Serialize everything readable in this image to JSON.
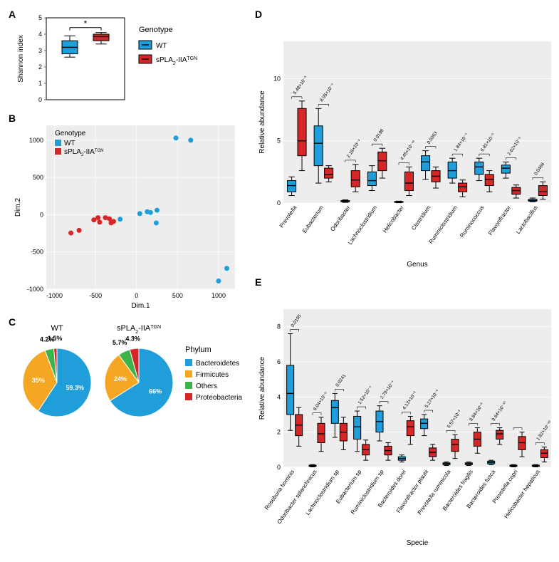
{
  "colors": {
    "wt": "#1f9ed9",
    "tg": "#d62728",
    "bacteroidetes": "#1f9ed9",
    "firmicutes": "#f5a623",
    "others": "#3cb44b",
    "proteobacteria": "#d62728",
    "bg": "#ffffff",
    "grid": "#d0d0d0",
    "axis": "#000000",
    "panel": "#ededed"
  },
  "genotype_legend": {
    "title": "Genotype",
    "wt": "WT",
    "tg_prefix": "sPLA",
    "tg_sub": "2",
    "tg_mid": "-IIA",
    "tg_super": "TGN"
  },
  "phylum_legend": {
    "title": "Phylum",
    "items": [
      "Bacteroidetes",
      "Firmicutes",
      "Others",
      "Proteobacteria"
    ]
  },
  "panelA": {
    "label": "A",
    "ylabel": "Shannon index",
    "ylim": [
      0,
      5
    ],
    "yticks": [
      0,
      1,
      2,
      3,
      4,
      5
    ],
    "sig": "*",
    "boxes": {
      "wt": {
        "min": 2.6,
        "q1": 2.8,
        "med": 3.2,
        "q3": 3.6,
        "max": 3.9
      },
      "tg": {
        "min": 3.4,
        "q1": 3.6,
        "med": 3.85,
        "q3": 4.0,
        "max": 4.1
      }
    }
  },
  "panelB": {
    "label": "B",
    "xlabel": "Dim.1",
    "ylabel": "Dim.2",
    "xlim": [
      -1100,
      1200
    ],
    "xticks": [
      -1000,
      -500,
      0,
      500,
      1000
    ],
    "ylim": [
      -1000,
      1200
    ],
    "yticks": [
      -1000,
      -500,
      0,
      500,
      1000
    ],
    "wt_points": [
      [
        -200,
        -60
      ],
      [
        40,
        15
      ],
      [
        130,
        40
      ],
      [
        170,
        30
      ],
      [
        250,
        60
      ],
      [
        240,
        -110
      ],
      [
        480,
        1030
      ],
      [
        660,
        1000
      ],
      [
        1100,
        -720
      ],
      [
        1000,
        -890
      ]
    ],
    "tg_points": [
      [
        -800,
        -245
      ],
      [
        -700,
        -210
      ],
      [
        -520,
        -70
      ],
      [
        -470,
        -40
      ],
      [
        -450,
        -100
      ],
      [
        -380,
        -40
      ],
      [
        -330,
        -55
      ],
      [
        -310,
        -110
      ],
      [
        -280,
        -90
      ]
    ]
  },
  "panelC": {
    "label": "C",
    "wt_title": "WT",
    "tg_title_prefix": "sPLA",
    "tg_title_sub": "2",
    "tg_title_mid": "-IIA",
    "tg_title_sup": "TGN",
    "wt": {
      "Bacteroidetes": 59.3,
      "Firmicutes": 35,
      "Others": 4.2,
      "Proteobacteria": 1.5
    },
    "tg": {
      "Bacteroidetes": 66,
      "Firmicutes": 24,
      "Others": 5.7,
      "Proteobacteria": 4.3
    },
    "wt_labels": [
      "59.3%",
      "35%",
      "4.2%",
      "1.5%"
    ],
    "tg_labels": [
      "66%",
      "24%",
      "5.7%",
      "4.3%"
    ]
  },
  "panelD": {
    "label": "D",
    "xlabel": "Genus",
    "ylabel": "Relative abundance",
    "ylim": [
      0,
      13
    ],
    "yticks": [
      0,
      5,
      10
    ],
    "categories": [
      "Prevotella",
      "Eubacterium",
      "Odoribacter",
      "Lachnoclostridium",
      "Helicobacter",
      "Clostridium",
      "Ruminiclostridium",
      "Ruminococcus",
      "Flavonifractor",
      "Lactobacillus"
    ],
    "pvals": [
      "5.48×10⁻³",
      "8.05×10⁻⁴",
      "2.18×10⁻⁹",
      "0.0198",
      "4.45×10⁻⁴³",
      "0.0363",
      "1.84×10⁻⁴",
      "6.81×10⁻³",
      "2.62×10⁻⁶",
      "0.0466"
    ],
    "wt": [
      {
        "min": 0.6,
        "q1": 0.9,
        "med": 1.4,
        "q3": 1.8,
        "max": 2.1
      },
      {
        "min": 1.6,
        "q1": 3.0,
        "med": 4.8,
        "q3": 6.2,
        "max": 7.6
      },
      {
        "min": 0.05,
        "q1": 0.1,
        "med": 0.15,
        "q3": 0.2,
        "max": 0.25
      },
      {
        "min": 1.0,
        "q1": 1.4,
        "med": 1.8,
        "q3": 2.5,
        "max": 3.0
      },
      {
        "min": 0.02,
        "q1": 0.05,
        "med": 0.08,
        "q3": 0.12,
        "max": 0.15
      },
      {
        "min": 1.9,
        "q1": 2.6,
        "med": 3.3,
        "q3": 3.8,
        "max": 4.2
      },
      {
        "min": 1.6,
        "q1": 2.0,
        "med": 2.6,
        "q3": 3.3,
        "max": 3.6
      },
      {
        "min": 1.8,
        "q1": 2.3,
        "med": 2.9,
        "q3": 3.3,
        "max": 3.6
      },
      {
        "min": 2.0,
        "q1": 2.4,
        "med": 2.8,
        "q3": 3.05,
        "max": 3.3
      },
      {
        "min": 0.1,
        "q1": 0.15,
        "med": 0.2,
        "q3": 0.3,
        "max": 0.4
      }
    ],
    "tg": [
      {
        "min": 2.6,
        "q1": 3.8,
        "med": 5.0,
        "q3": 7.6,
        "max": 8.2
      },
      {
        "min": 1.7,
        "q1": 2.0,
        "med": 2.3,
        "q3": 2.8,
        "max": 3.0
      },
      {
        "min": 0.9,
        "q1": 1.3,
        "med": 1.85,
        "q3": 2.6,
        "max": 3.1
      },
      {
        "min": 2.0,
        "q1": 2.6,
        "med": 3.4,
        "q3": 4.1,
        "max": 4.4
      },
      {
        "min": 0.6,
        "q1": 1.0,
        "med": 1.6,
        "q3": 2.5,
        "max": 2.9
      },
      {
        "min": 1.2,
        "q1": 1.7,
        "med": 2.15,
        "q3": 2.6,
        "max": 2.9
      },
      {
        "min": 0.5,
        "q1": 0.9,
        "med": 1.3,
        "q3": 1.6,
        "max": 1.85
      },
      {
        "min": 0.9,
        "q1": 1.4,
        "med": 1.9,
        "q3": 2.3,
        "max": 2.6
      },
      {
        "min": 0.4,
        "q1": 0.7,
        "med": 1.0,
        "q3": 1.25,
        "max": 1.45
      },
      {
        "min": 0.3,
        "q1": 0.6,
        "med": 0.9,
        "q3": 1.4,
        "max": 1.7
      }
    ]
  },
  "panelE": {
    "label": "E",
    "xlabel": "Specie",
    "ylabel": "Relative abundance",
    "ylim": [
      0,
      9
    ],
    "yticks": [
      0,
      2,
      4,
      6,
      8
    ],
    "categories": [
      "Roseburia hominis",
      "Odoribacter splanchnicus",
      "Lachnoclostridium sp",
      "Eubacterium sp",
      "Ruminiclostridium sp",
      "Bacteroides dorei",
      "Flavonifractor plautii",
      "Prevotella ruminicola",
      "Bacteroides fragilis",
      "Bacteroides fusca",
      "Prevotella copri",
      "Helicobacter hepaticus"
    ],
    "pvals": [
      "0.0195",
      "8.04×10⁻⁹",
      "0.0241",
      "1.52×10⁻⁴",
      "2.79×10⁻⁴",
      "4.13×10⁻³",
      "5.27×10⁻⁶",
      "5.57×10⁻³",
      "8.84×10⁻³",
      "9.64×10⁻¹⁰",
      "",
      "1.82×10⁻⁹²"
    ],
    "wt": [
      {
        "min": 2.1,
        "q1": 3.0,
        "med": 4.2,
        "q3": 5.8,
        "max": 7.6
      },
      {
        "min": 0.02,
        "q1": 0.05,
        "med": 0.08,
        "q3": 0.12,
        "max": 0.15
      },
      {
        "min": 1.7,
        "q1": 2.5,
        "med": 3.4,
        "q3": 3.8,
        "max": 4.2
      },
      {
        "min": 0.9,
        "q1": 1.6,
        "med": 2.3,
        "q3": 2.9,
        "max": 3.2
      },
      {
        "min": 1.5,
        "q1": 2.0,
        "med": 2.6,
        "q3": 3.2,
        "max": 3.5
      },
      {
        "min": 0.3,
        "q1": 0.4,
        "med": 0.5,
        "q3": 0.6,
        "max": 0.7
      },
      {
        "min": 1.8,
        "q1": 2.2,
        "med": 2.5,
        "q3": 2.75,
        "max": 3.0
      },
      {
        "min": 0.1,
        "q1": 0.15,
        "med": 0.2,
        "q3": 0.25,
        "max": 0.3
      },
      {
        "min": 0.1,
        "q1": 0.15,
        "med": 0.2,
        "q3": 0.25,
        "max": 0.3
      },
      {
        "min": 0.15,
        "q1": 0.2,
        "med": 0.28,
        "q3": 0.35,
        "max": 0.4
      },
      {
        "min": 0.02,
        "q1": 0.05,
        "med": 0.08,
        "q3": 0.12,
        "max": 0.15
      },
      {
        "min": 0.02,
        "q1": 0.05,
        "med": 0.08,
        "q3": 0.12,
        "max": 0.15
      }
    ],
    "tg": [
      {
        "min": 1.2,
        "q1": 1.8,
        "med": 2.4,
        "q3": 3.0,
        "max": 3.4
      },
      {
        "min": 0.9,
        "q1": 1.4,
        "med": 1.9,
        "q3": 2.5,
        "max": 2.85
      },
      {
        "min": 1.0,
        "q1": 1.5,
        "med": 2.0,
        "q3": 2.5,
        "max": 2.85
      },
      {
        "min": 0.4,
        "q1": 0.7,
        "med": 1.0,
        "q3": 1.3,
        "max": 1.55
      },
      {
        "min": 0.4,
        "q1": 0.7,
        "med": 0.95,
        "q3": 1.2,
        "max": 1.4
      },
      {
        "min": 1.3,
        "q1": 1.8,
        "med": 2.3,
        "q3": 2.65,
        "max": 2.9
      },
      {
        "min": 0.4,
        "q1": 0.6,
        "med": 0.85,
        "q3": 1.1,
        "max": 1.3
      },
      {
        "min": 0.5,
        "q1": 0.9,
        "med": 1.3,
        "q3": 1.6,
        "max": 1.85
      },
      {
        "min": 0.8,
        "q1": 1.2,
        "med": 1.6,
        "q3": 2.0,
        "max": 2.25
      },
      {
        "min": 1.3,
        "q1": 1.6,
        "med": 1.9,
        "q3": 2.1,
        "max": 2.25
      },
      {
        "min": 0.6,
        "q1": 1.0,
        "med": 1.4,
        "q3": 1.75,
        "max": 2.0
      },
      {
        "min": 0.3,
        "q1": 0.55,
        "med": 0.8,
        "q3": 1.0,
        "max": 1.15
      }
    ]
  }
}
